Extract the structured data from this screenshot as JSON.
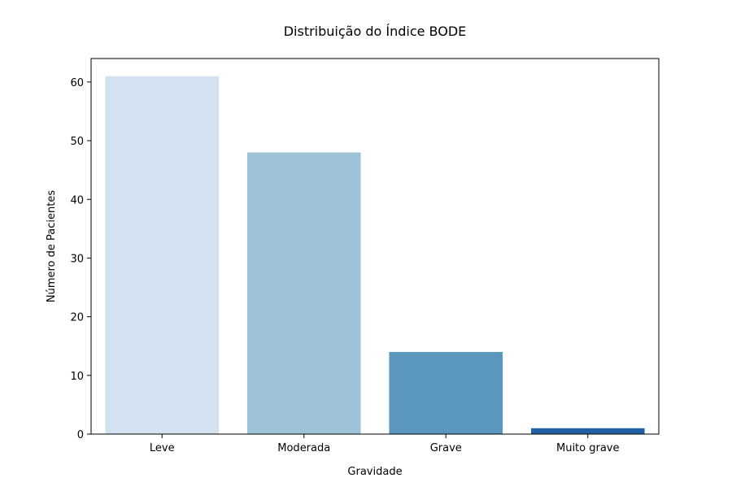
{
  "chart_data": {
    "type": "bar",
    "title": "Distribuição do Índice BODE",
    "xlabel": "Gravidade",
    "ylabel": "Número de Pacientes",
    "categories": [
      "Leve",
      "Moderada",
      "Grave",
      "Muito grave"
    ],
    "values": [
      61,
      48,
      14,
      1
    ],
    "colors": [
      "#d2e2f0",
      "#9ec2d7",
      "#5a96bd",
      "#2060a4"
    ],
    "ylim": [
      0,
      64
    ],
    "yticks": [
      0,
      10,
      20,
      30,
      40,
      50,
      60
    ],
    "grid": false,
    "legend": "none"
  }
}
